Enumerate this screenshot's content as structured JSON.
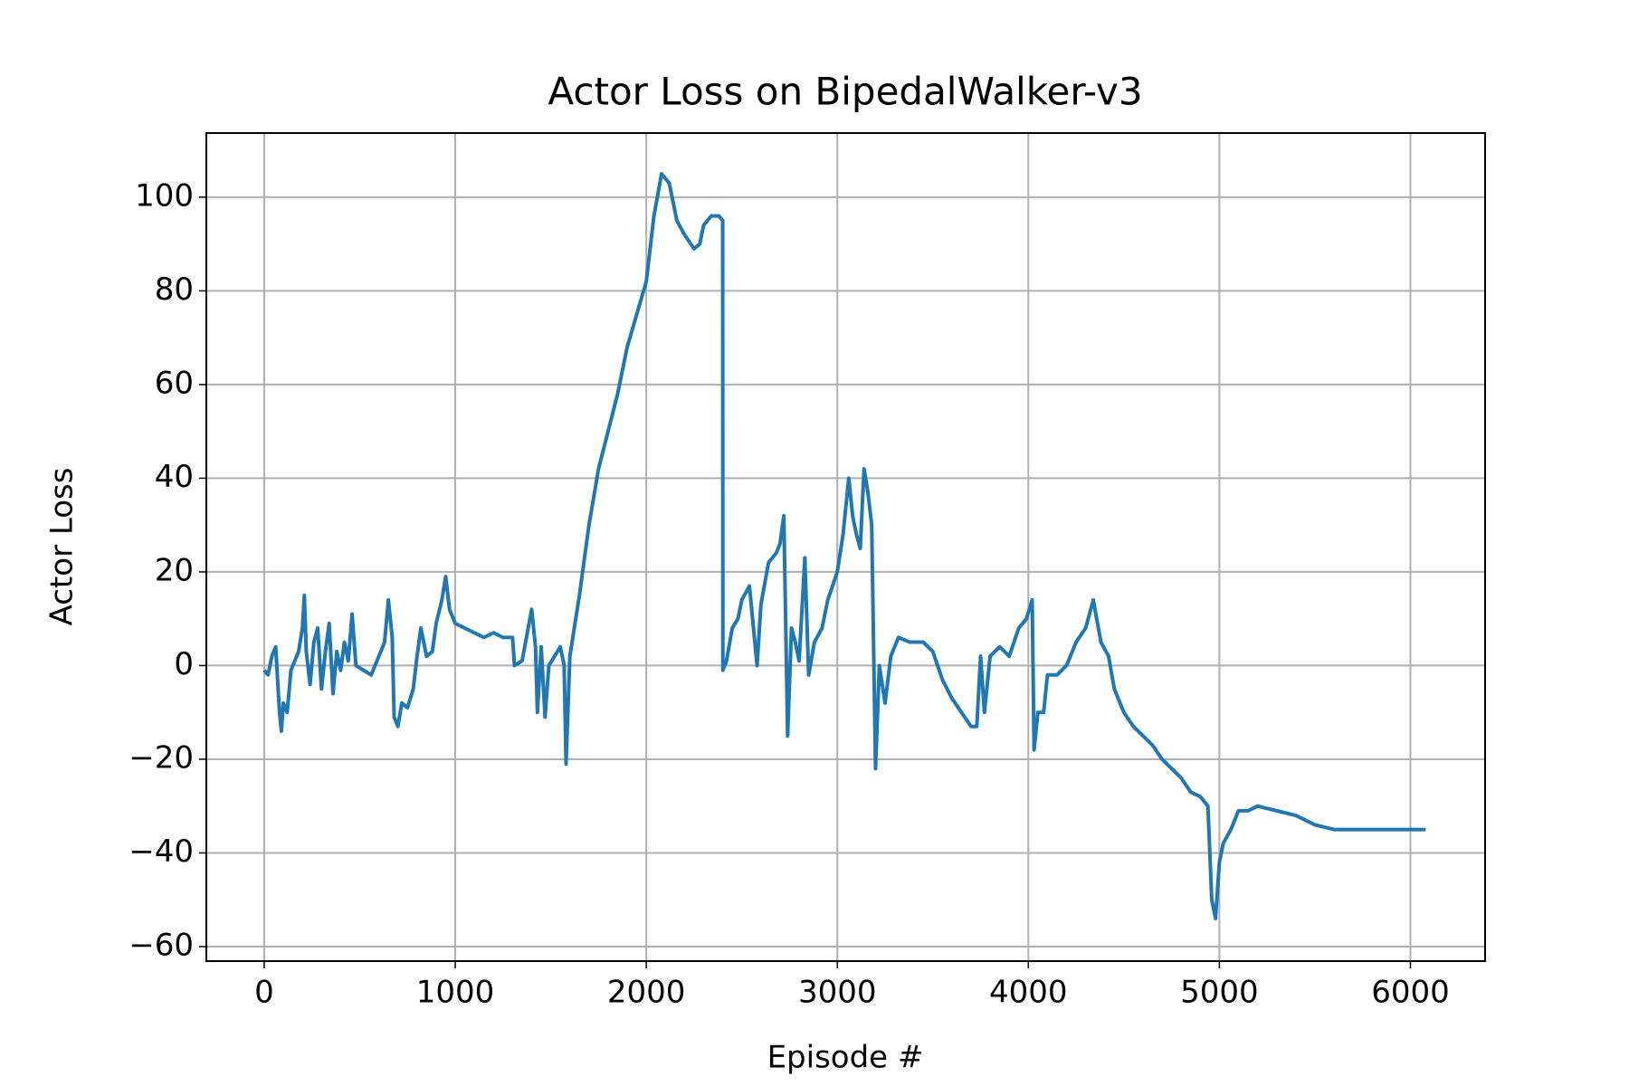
{
  "chart_data": {
    "type": "line",
    "title": "Actor Loss on BipedalWalker-v3",
    "xlabel": "Episode #",
    "ylabel": "Actor Loss",
    "x": [
      0,
      20,
      40,
      60,
      70,
      80,
      90,
      100,
      120,
      140,
      160,
      180,
      200,
      210,
      220,
      240,
      260,
      280,
      300,
      320,
      340,
      360,
      380,
      400,
      420,
      440,
      460,
      480,
      520,
      560,
      600,
      630,
      650,
      670,
      680,
      700,
      720,
      750,
      780,
      800,
      820,
      850,
      880,
      900,
      930,
      950,
      970,
      1000,
      1050,
      1100,
      1150,
      1200,
      1250,
      1300,
      1310,
      1350,
      1400,
      1420,
      1430,
      1450,
      1470,
      1490,
      1520,
      1550,
      1570,
      1580,
      1600,
      1650,
      1700,
      1750,
      1800,
      1850,
      1900,
      1950,
      2000,
      2040,
      2080,
      2120,
      2160,
      2200,
      2250,
      2280,
      2300,
      2340,
      2380,
      2400,
      2401,
      2420,
      2450,
      2480,
      2500,
      2540,
      2580,
      2600,
      2640,
      2680,
      2700,
      2720,
      2740,
      2760,
      2780,
      2800,
      2830,
      2850,
      2880,
      2920,
      2950,
      3000,
      3030,
      3060,
      3080,
      3100,
      3120,
      3140,
      3160,
      3180,
      3200,
      3220,
      3250,
      3280,
      3320,
      3380,
      3450,
      3500,
      3550,
      3600,
      3650,
      3700,
      3730,
      3750,
      3770,
      3800,
      3850,
      3900,
      3950,
      3990,
      4020,
      4030,
      4050,
      4080,
      4100,
      4150,
      4200,
      4250,
      4300,
      4340,
      4380,
      4420,
      4450,
      4500,
      4550,
      4600,
      4650,
      4700,
      4750,
      4800,
      4850,
      4900,
      4940,
      4960,
      4980,
      5000,
      5020,
      5060,
      5100,
      5150,
      5200,
      5300,
      5400,
      5500,
      5600,
      5700,
      5800,
      5900,
      6000,
      6080
    ],
    "values": [
      -1,
      -2,
      2,
      4,
      -3,
      -10,
      -14,
      -8,
      -10,
      -1,
      1,
      3,
      8,
      15,
      3,
      -4,
      5,
      8,
      -5,
      3,
      9,
      -6,
      3,
      -1,
      5,
      1,
      11,
      0,
      -1,
      -2,
      2,
      5,
      14,
      6,
      -11,
      -13,
      -8,
      -9,
      -5,
      2,
      8,
      2,
      3,
      9,
      14,
      19,
      12,
      9,
      8,
      7,
      6,
      7,
      6,
      6,
      0,
      1,
      12,
      4,
      -10,
      4,
      -11,
      0,
      2,
      4,
      0,
      -21,
      2,
      15,
      30,
      42,
      50,
      58,
      68,
      75,
      82,
      96,
      105,
      103,
      95,
      92,
      89,
      90,
      94,
      96,
      96,
      95,
      -1,
      1,
      8,
      10,
      14,
      17,
      0,
      13,
      22,
      24,
      26,
      32,
      -15,
      8,
      5,
      1,
      23,
      -2,
      5,
      8,
      14,
      20,
      28,
      40,
      32,
      28,
      25,
      42,
      37,
      30,
      -22,
      0,
      -8,
      2,
      6,
      5,
      5,
      3,
      -3,
      -7,
      -10,
      -13,
      -13,
      2,
      -10,
      2,
      4,
      2,
      8,
      10,
      14,
      -18,
      -10,
      -10,
      -2,
      -2,
      0,
      5,
      8,
      14,
      5,
      2,
      -5,
      -10,
      -13,
      -15,
      -17,
      -20,
      -22,
      -24,
      -27,
      -28,
      -30,
      -50,
      -54,
      -42,
      -38,
      -35,
      -31,
      -31,
      -30,
      -31,
      -32,
      -34,
      -35,
      -35,
      -35,
      -35,
      -35,
      -35
    ],
    "color": "#1f77b4",
    "xlim": [
      -303,
      6391
    ],
    "ylim": [
      -63.1,
      113.7
    ],
    "xticks": [
      0,
      1000,
      2000,
      3000,
      4000,
      5000,
      6000
    ],
    "yticks": [
      {
        "value": -60,
        "label": "−60"
      },
      {
        "value": -40,
        "label": "−40"
      },
      {
        "value": -20,
        "label": "−20"
      },
      0,
      20,
      40,
      60,
      80,
      100
    ],
    "grid": true
  }
}
